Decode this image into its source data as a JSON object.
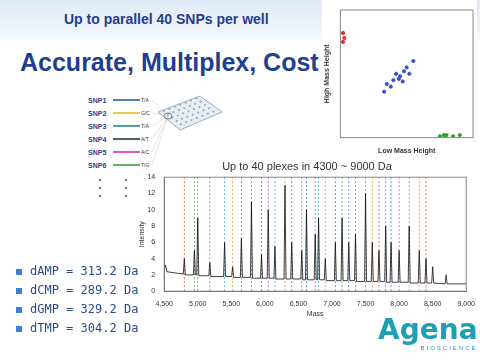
{
  "header": {
    "banner": "Up to parallel 40 SNPs per well",
    "title": "Accurate, Multiplex, Cost Down"
  },
  "snps": [
    {
      "label": "SNP1",
      "alleles": "T/A",
      "color": "#1f5fbf"
    },
    {
      "label": "SNP2",
      "alleles": "G/C",
      "color": "#e8c01a"
    },
    {
      "label": "SNP3",
      "alleles": "T/A",
      "color": "#2a7fc0"
    },
    {
      "label": "SNP4",
      "alleles": "A/T",
      "color": "#1f3f2f"
    },
    {
      "label": "SNP5",
      "alleles": "A/C",
      "color": "#d02fc0"
    },
    {
      "label": "SNP6",
      "alleles": "T/G",
      "color": "#3aa03a"
    }
  ],
  "bullets": [
    "dAMP = 313.2 Da",
    "dCMP = 289.2 Da",
    "dGMP = 329.2 Da",
    "dTMP = 304.2 Da"
  ],
  "logo": {
    "name": "Agena",
    "subtitle": "BIOSCIENCE"
  },
  "chart_data": [
    {
      "type": "scatter",
      "x_label": "Low Mass Height",
      "y_label": "High Mass Height",
      "xlim": [
        0,
        1
      ],
      "ylim": [
        0,
        1
      ],
      "tick_labels": false,
      "grid": false,
      "series": [
        {
          "color": "#3a4fc8",
          "x": [
            0.33,
            0.35,
            0.38,
            0.4,
            0.42,
            0.44,
            0.45,
            0.47,
            0.48,
            0.5,
            0.52,
            0.55
          ],
          "values": [
            0.36,
            0.42,
            0.4,
            0.45,
            0.5,
            0.46,
            0.48,
            0.44,
            0.52,
            0.55,
            0.5,
            0.6
          ]
        },
        {
          "color": "#e03030",
          "x": [
            0.02,
            0.03,
            0.02
          ],
          "values": [
            0.82,
            0.78,
            0.75
          ]
        },
        {
          "color": "#2ca02c",
          "x": [
            0.75,
            0.78,
            0.8,
            0.85,
            0.9
          ],
          "values": [
            0.01,
            0.02,
            0.02,
            0.01,
            0.02
          ]
        }
      ]
    },
    {
      "type": "line",
      "title": "Up to 40 plexes in 4300 ~ 9000 Da",
      "x_label": "Mass",
      "y_label": "Intensity",
      "xlim": [
        4500,
        9000
      ],
      "xticks": [
        4500,
        5000,
        5500,
        6000,
        6500,
        7000,
        7500,
        8000,
        8500,
        9000
      ],
      "ylim": [
        0,
        14
      ],
      "yticks": [
        0,
        2,
        4,
        6,
        8,
        10,
        12,
        14
      ],
      "grid": false,
      "color": "#111111",
      "x": [
        4500,
        4520,
        4540,
        4700,
        4785,
        4800,
        4815,
        4935,
        4950,
        4965,
        4985,
        5000,
        5015,
        5165,
        5180,
        5195,
        5385,
        5400,
        5415,
        5505,
        5520,
        5535,
        5635,
        5650,
        5665,
        5785,
        5800,
        5815,
        5935,
        5950,
        5965,
        6035,
        6050,
        6065,
        6135,
        6150,
        6165,
        6285,
        6300,
        6315,
        6385,
        6400,
        6415,
        6535,
        6550,
        6565,
        6605,
        6620,
        6635,
        6735,
        6750,
        6765,
        6785,
        6800,
        6815,
        6885,
        6900,
        6915,
        7035,
        7050,
        7065,
        7135,
        7150,
        7165,
        7235,
        7250,
        7265,
        7335,
        7350,
        7365,
        7485,
        7500,
        7515,
        7585,
        7600,
        7615,
        7685,
        7700,
        7715,
        7785,
        7800,
        7815,
        7865,
        7880,
        7895,
        7985,
        8000,
        8015,
        8135,
        8150,
        8165,
        8285,
        8300,
        8315,
        8385,
        8400,
        8415,
        8485,
        8500,
        8515,
        8685,
        8700,
        8715,
        9000
      ],
      "values": [
        2.6,
        3.2,
        2.4,
        2.2,
        2.1,
        4.0,
        2.0,
        2.0,
        5.0,
        2.0,
        2.0,
        9.0,
        1.9,
        1.9,
        3.5,
        1.8,
        1.8,
        6.0,
        1.8,
        1.8,
        3.0,
        1.7,
        1.7,
        6.5,
        1.7,
        1.7,
        11.0,
        1.6,
        1.6,
        4.5,
        1.6,
        1.6,
        10.0,
        1.6,
        1.6,
        5.5,
        1.5,
        1.5,
        13.0,
        1.5,
        1.5,
        6.0,
        1.5,
        1.5,
        5.0,
        1.4,
        1.4,
        10.0,
        1.4,
        1.4,
        7.0,
        1.4,
        1.4,
        9.0,
        1.4,
        1.4,
        4.0,
        1.3,
        1.3,
        6.0,
        1.3,
        1.3,
        9.0,
        1.3,
        1.3,
        6.0,
        1.3,
        1.3,
        7.0,
        1.2,
        1.2,
        12.0,
        1.2,
        1.2,
        6.0,
        1.2,
        1.2,
        5.0,
        1.2,
        1.2,
        8.0,
        1.1,
        1.1,
        6.0,
        1.1,
        1.1,
        5.0,
        1.1,
        1.1,
        8.0,
        1.0,
        1.0,
        5.0,
        1.0,
        1.0,
        4.0,
        1.0,
        1.0,
        3.0,
        1.0,
        0.9,
        2.0,
        0.9,
        0.9
      ],
      "reference_lines": [
        {
          "x": 4800,
          "color": "#e05050"
        },
        {
          "x": 4950,
          "color": "#50a050"
        },
        {
          "x": 5000,
          "color": "#5070d0"
        },
        {
          "x": 5180,
          "color": "#c050c0"
        },
        {
          "x": 5400,
          "color": "#40b0c0"
        },
        {
          "x": 5520,
          "color": "#e0a030"
        },
        {
          "x": 5650,
          "color": "#e05050"
        },
        {
          "x": 5800,
          "color": "#50a050"
        },
        {
          "x": 5950,
          "color": "#5070d0"
        },
        {
          "x": 6050,
          "color": "#c050c0"
        },
        {
          "x": 6150,
          "color": "#40b0c0"
        },
        {
          "x": 6300,
          "color": "#e0a030"
        },
        {
          "x": 6400,
          "color": "#e05050"
        },
        {
          "x": 6550,
          "color": "#50a050"
        },
        {
          "x": 6620,
          "color": "#5070d0"
        },
        {
          "x": 6750,
          "color": "#c050c0"
        },
        {
          "x": 6800,
          "color": "#40b0c0"
        },
        {
          "x": 6900,
          "color": "#e0a030"
        },
        {
          "x": 7050,
          "color": "#e05050"
        },
        {
          "x": 7150,
          "color": "#50a050"
        },
        {
          "x": 7250,
          "color": "#5070d0"
        },
        {
          "x": 7350,
          "color": "#c050c0"
        },
        {
          "x": 7500,
          "color": "#40b0c0"
        },
        {
          "x": 7600,
          "color": "#e0a030"
        },
        {
          "x": 7700,
          "color": "#e05050"
        },
        {
          "x": 7800,
          "color": "#50a050"
        },
        {
          "x": 7880,
          "color": "#5070d0"
        },
        {
          "x": 8000,
          "color": "#c050c0"
        },
        {
          "x": 8150,
          "color": "#40b0c0"
        },
        {
          "x": 8300,
          "color": "#e0a030"
        },
        {
          "x": 8400,
          "color": "#e05050"
        }
      ]
    }
  ]
}
